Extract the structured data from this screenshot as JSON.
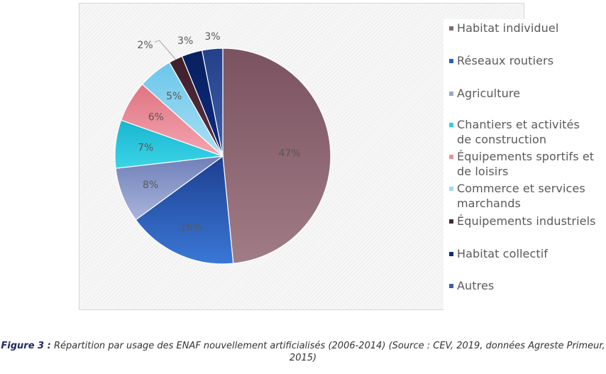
{
  "chart_data": {
    "type": "pie",
    "title": "",
    "slices": [
      {
        "label": "Habitat individuel",
        "value": 47,
        "value_label": "47%",
        "color": "#a07c86",
        "color_dark": "#7b5260"
      },
      {
        "label": "Réseaux routiers",
        "value": 16,
        "value_label": "16%",
        "color": "#3a78d6",
        "color_dark": "#1d3f90"
      },
      {
        "label": "Agriculture",
        "value": 8,
        "value_label": "8%",
        "color": "#a9b4dc",
        "color_dark": "#6f80b8"
      },
      {
        "label": "Chantiers et activités de construction",
        "value": 7,
        "value_label": "7%",
        "color": "#3bd4e8",
        "color_dark": "#19b6cf"
      },
      {
        "label": "Équipements sportifs et de loisirs",
        "value": 6,
        "value_label": "6%",
        "color": "#f4a5b0",
        "color_dark": "#e07482"
      },
      {
        "label": "Commerce et services marchands",
        "value": 5,
        "value_label": "5%",
        "color": "#a8e0f4",
        "color_dark": "#6cc6ea"
      },
      {
        "label": "Équipements industriels",
        "value": 2,
        "value_label": "2%",
        "color": "#5a3040",
        "color_dark": "#3d1f2a"
      },
      {
        "label": "Habitat collectif",
        "value": 3,
        "value_label": "3%",
        "color": "#0d2c80",
        "color_dark": "#08205e"
      },
      {
        "label": "Autres",
        "value": 3,
        "value_label": "3%",
        "color": "#3d5fa8",
        "color_dark": "#23418a"
      }
    ],
    "legend_position": "right",
    "legend": [
      {
        "label": "Habitat individuel",
        "color": "#8a6572"
      },
      {
        "label": "Réseaux routiers",
        "color": "#2a5fc0"
      },
      {
        "label": "Agriculture",
        "color": "#9aa6d4"
      },
      {
        "label": "Chantiers et activités de construction",
        "color": "#2fd0e6"
      },
      {
        "label": "Équipements sportifs et de loisirs",
        "color": "#ee8d9a"
      },
      {
        "label": "Commerce et services marchands",
        "color": "#9fdcf2"
      },
      {
        "label": "Équipements industriels",
        "color": "#4a2836"
      },
      {
        "label": "Habitat collectif",
        "color": "#0d2c80"
      },
      {
        "label": "Autres",
        "color": "#3d5fa8"
      }
    ]
  },
  "caption": {
    "figure_label": "Figure 3 :",
    "text": " Répartition par usage des ENAF nouvellement artificialisés (2006-2014) (Source : CEV, 2019, données Agreste Primeur, 2015)"
  },
  "colors": {
    "label_text": "#595959",
    "pie_stroke": "#ffffff"
  }
}
